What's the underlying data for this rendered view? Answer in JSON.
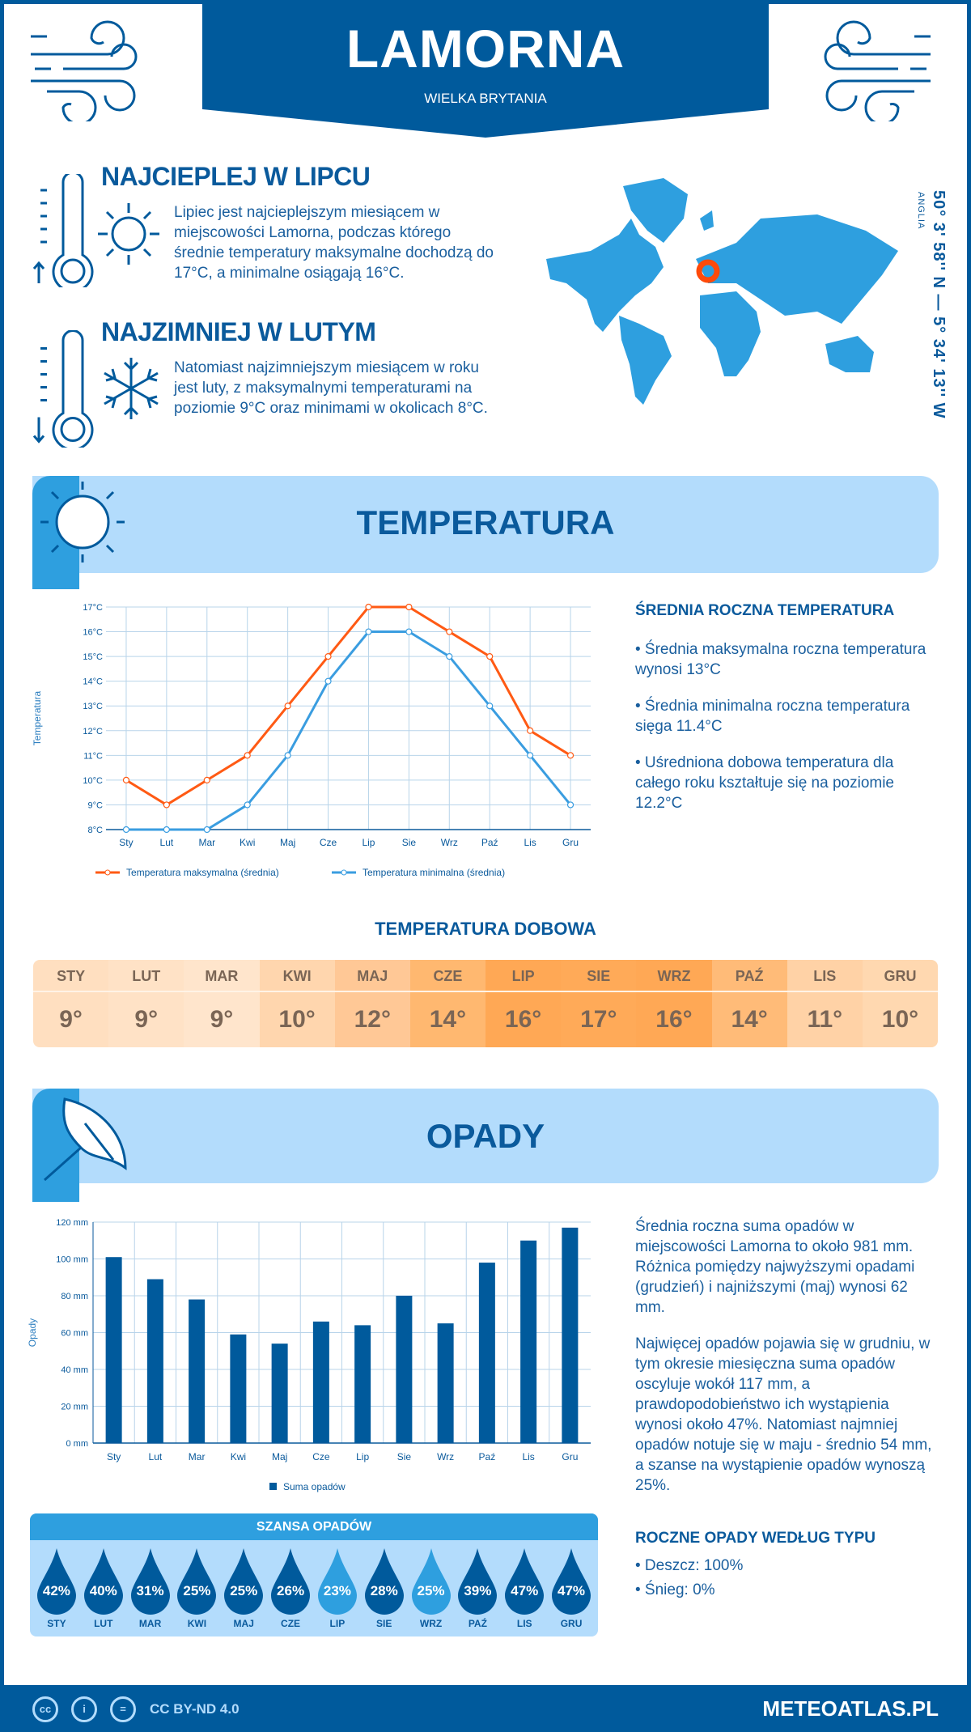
{
  "header": {
    "title": "LAMORNA",
    "subtitle": "WIELKA BRYTANIA"
  },
  "warmest": {
    "heading": "NAJCIEPLEJ W LIPCU",
    "text": "Lipiec jest najcieplejszym miesiącem w miejscowości Lamorna, podczas którego średnie temperatury maksymalne dochodzą do 17°C, a minimalne osiągają 16°C."
  },
  "coldest": {
    "heading": "NAJZIMNIEJ W LUTYM",
    "text": "Natomiast najzimniejszym miesiącem w roku jest luty, z maksymalnymi temperaturami na poziomie 9°C oraz minimami w okolicach 8°C."
  },
  "location": {
    "coords": "50° 3' 58'' N — 5° 34' 13'' W",
    "region": "ANGLIA",
    "marker_color": "#ff4a0a"
  },
  "colors": {
    "dark_blue": "#005a9c",
    "light_blue": "#2e9fdf",
    "pale_blue": "#b3dcfc",
    "max_line": "#ff5a14",
    "min_line": "#3a9de0"
  },
  "temperature": {
    "section_title": "TEMPERATURA",
    "summary_heading": "ŚREDNIA ROCZNA TEMPERATURA",
    "bullets": [
      "• Średnia maksymalna roczna temperatura wynosi 13°C",
      "• Średnia minimalna roczna temperatura sięga 11.4°C",
      "• Uśredniona dobowa temperatura dla całego roku kształtuje się na poziomie 12.2°C"
    ],
    "daily_heading": "TEMPERATURA DOBOWA",
    "daily": [
      {
        "month": "STY",
        "value": "9°",
        "color": "#ffdfc0"
      },
      {
        "month": "LUT",
        "value": "9°",
        "color": "#ffe2c6"
      },
      {
        "month": "MAR",
        "value": "9°",
        "color": "#ffe5cc"
      },
      {
        "month": "KWI",
        "value": "10°",
        "color": "#ffd6ae"
      },
      {
        "month": "MAJ",
        "value": "12°",
        "color": "#ffc896"
      },
      {
        "month": "CZE",
        "value": "14°",
        "color": "#ffb870"
      },
      {
        "month": "LIP",
        "value": "16°",
        "color": "#ffa855"
      },
      {
        "month": "SIE",
        "value": "17°",
        "color": "#ffaa58"
      },
      {
        "month": "WRZ",
        "value": "16°",
        "color": "#ffa855"
      },
      {
        "month": "PAŹ",
        "value": "14°",
        "color": "#ffbb78"
      },
      {
        "month": "LIS",
        "value": "11°",
        "color": "#ffd2a6"
      },
      {
        "month": "GRU",
        "value": "10°",
        "color": "#ffd8b0"
      }
    ]
  },
  "chart_data": [
    {
      "type": "line",
      "categories": [
        "Sty",
        "Lut",
        "Mar",
        "Kwi",
        "Maj",
        "Cze",
        "Lip",
        "Sie",
        "Wrz",
        "Paź",
        "Lis",
        "Gru"
      ],
      "ylabel": "Temperatura",
      "ylim": [
        8,
        17
      ],
      "yticks": [
        "8°C",
        "9°C",
        "10°C",
        "11°C",
        "12°C",
        "13°C",
        "14°C",
        "15°C",
        "16°C",
        "17°C"
      ],
      "grid": true,
      "legend": "bottom",
      "series": [
        {
          "name": "Temperatura maksymalna (średnia)",
          "values": [
            10,
            9,
            10,
            11,
            13,
            15,
            17,
            17,
            16,
            15,
            12,
            11
          ],
          "color": "#ff5a14"
        },
        {
          "name": "Temperatura minimalna (średnia)",
          "values": [
            8,
            8,
            8,
            9,
            11,
            14,
            16,
            16,
            15,
            13,
            11,
            9
          ],
          "color": "#3a9de0"
        }
      ]
    },
    {
      "type": "bar",
      "categories": [
        "Sty",
        "Lut",
        "Mar",
        "Kwi",
        "Maj",
        "Cze",
        "Lip",
        "Sie",
        "Wrz",
        "Paź",
        "Lis",
        "Gru"
      ],
      "ylabel": "Opady",
      "ylim": [
        0,
        120
      ],
      "yticks": [
        "0 mm",
        "20 mm",
        "40 mm",
        "60 mm",
        "80 mm",
        "100 mm",
        "120 mm"
      ],
      "grid": true,
      "legend": "bottom",
      "series": [
        {
          "name": "Suma opadów",
          "values": [
            101,
            89,
            78,
            59,
            54,
            66,
            64,
            80,
            65,
            98,
            110,
            117
          ],
          "color": "#005a9c"
        }
      ]
    }
  ],
  "precipitation": {
    "section_title": "OPADY",
    "text1": "Średnia roczna suma opadów w miejscowości Lamorna to około 981 mm. Różnica pomiędzy najwyższymi opadami (grudzień) i najniższymi (maj) wynosi 62 mm.",
    "text2": "Najwięcej opadów pojawia się w grudniu, w tym okresie miesięczna suma opadów oscyluje wokół 117 mm, a prawdopodobieństwo ich wystąpienia wynosi około 47%. Natomiast najmniej opadów notuje się w maju - średnio 54 mm, a szanse na wystąpienie opadów wynoszą 25%.",
    "chance_heading": "SZANSA OPADÓW",
    "chance": [
      {
        "month": "STY",
        "pct": "42%",
        "color": "#005a9c"
      },
      {
        "month": "LUT",
        "pct": "40%",
        "color": "#005a9c"
      },
      {
        "month": "MAR",
        "pct": "31%",
        "color": "#005a9c"
      },
      {
        "month": "KWI",
        "pct": "25%",
        "color": "#005a9c"
      },
      {
        "month": "MAJ",
        "pct": "25%",
        "color": "#005a9c"
      },
      {
        "month": "CZE",
        "pct": "26%",
        "color": "#005a9c"
      },
      {
        "month": "LIP",
        "pct": "23%",
        "color": "#2e9fdf"
      },
      {
        "month": "SIE",
        "pct": "28%",
        "color": "#005a9c"
      },
      {
        "month": "WRZ",
        "pct": "25%",
        "color": "#2e9fdf"
      },
      {
        "month": "PAŹ",
        "pct": "39%",
        "color": "#005a9c"
      },
      {
        "month": "LIS",
        "pct": "47%",
        "color": "#005a9c"
      },
      {
        "month": "GRU",
        "pct": "47%",
        "color": "#005a9c"
      }
    ],
    "type_heading": "ROCZNE OPADY WEDŁUG TYPU",
    "types": [
      "• Deszcz: 100%",
      "• Śnieg: 0%"
    ]
  },
  "footer": {
    "license": "CC BY-ND 4.0",
    "brand": "METEOATLAS.PL",
    "cc_icons": [
      "cc",
      "i",
      "="
    ]
  }
}
